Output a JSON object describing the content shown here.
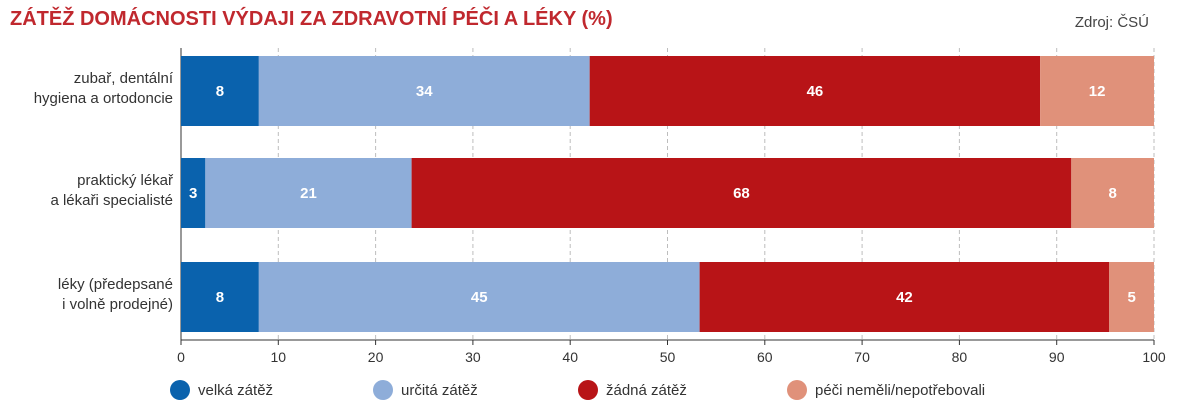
{
  "header": {
    "title": "ZÁTĚŽ DOMÁCNOSTI VÝDAJI ZA ZDRAVOTNÍ PÉČI A LÉKY (%)",
    "source": "Zdroj: ČSÚ"
  },
  "chart_data": {
    "type": "bar",
    "orientation": "horizontal",
    "stacked": true,
    "title": "ZÁTĚŽ DOMÁCNOSTI VÝDAJI ZA ZDRAVOTNÍ PÉČI A LÉKY (%)",
    "categories": [
      [
        "zubař, dentální",
        "hygiena a ortodoncie"
      ],
      [
        "praktický lékař",
        "a lékaři specialisté"
      ],
      [
        "léky (předepsané",
        "i volně prodejné)"
      ]
    ],
    "series": [
      {
        "name": "velká zátěž",
        "color": "#0a62ad",
        "values": [
          8,
          2.5,
          8
        ],
        "labels": [
          "8",
          "3",
          "8"
        ]
      },
      {
        "name": "určitá zátěž",
        "color": "#8eadd9",
        "values": [
          34,
          21.2,
          45.3
        ],
        "labels": [
          "34",
          "21",
          "45"
        ]
      },
      {
        "name": "žádná zátěž",
        "color": "#b81417",
        "values": [
          46.3,
          67.8,
          42.1
        ],
        "labels": [
          "46",
          "68",
          "42"
        ]
      },
      {
        "name": "péči neměli/nepotřebovali",
        "color": "#e0917a",
        "values": [
          11.7,
          8.5,
          4.6
        ],
        "labels": [
          "12",
          "8",
          "5"
        ]
      }
    ],
    "xlim": [
      0,
      100
    ],
    "xticks": [
      0,
      10,
      20,
      30,
      40,
      50,
      60,
      70,
      80,
      90,
      100
    ],
    "grid": "vertical dashed",
    "legend_position": "bottom"
  }
}
